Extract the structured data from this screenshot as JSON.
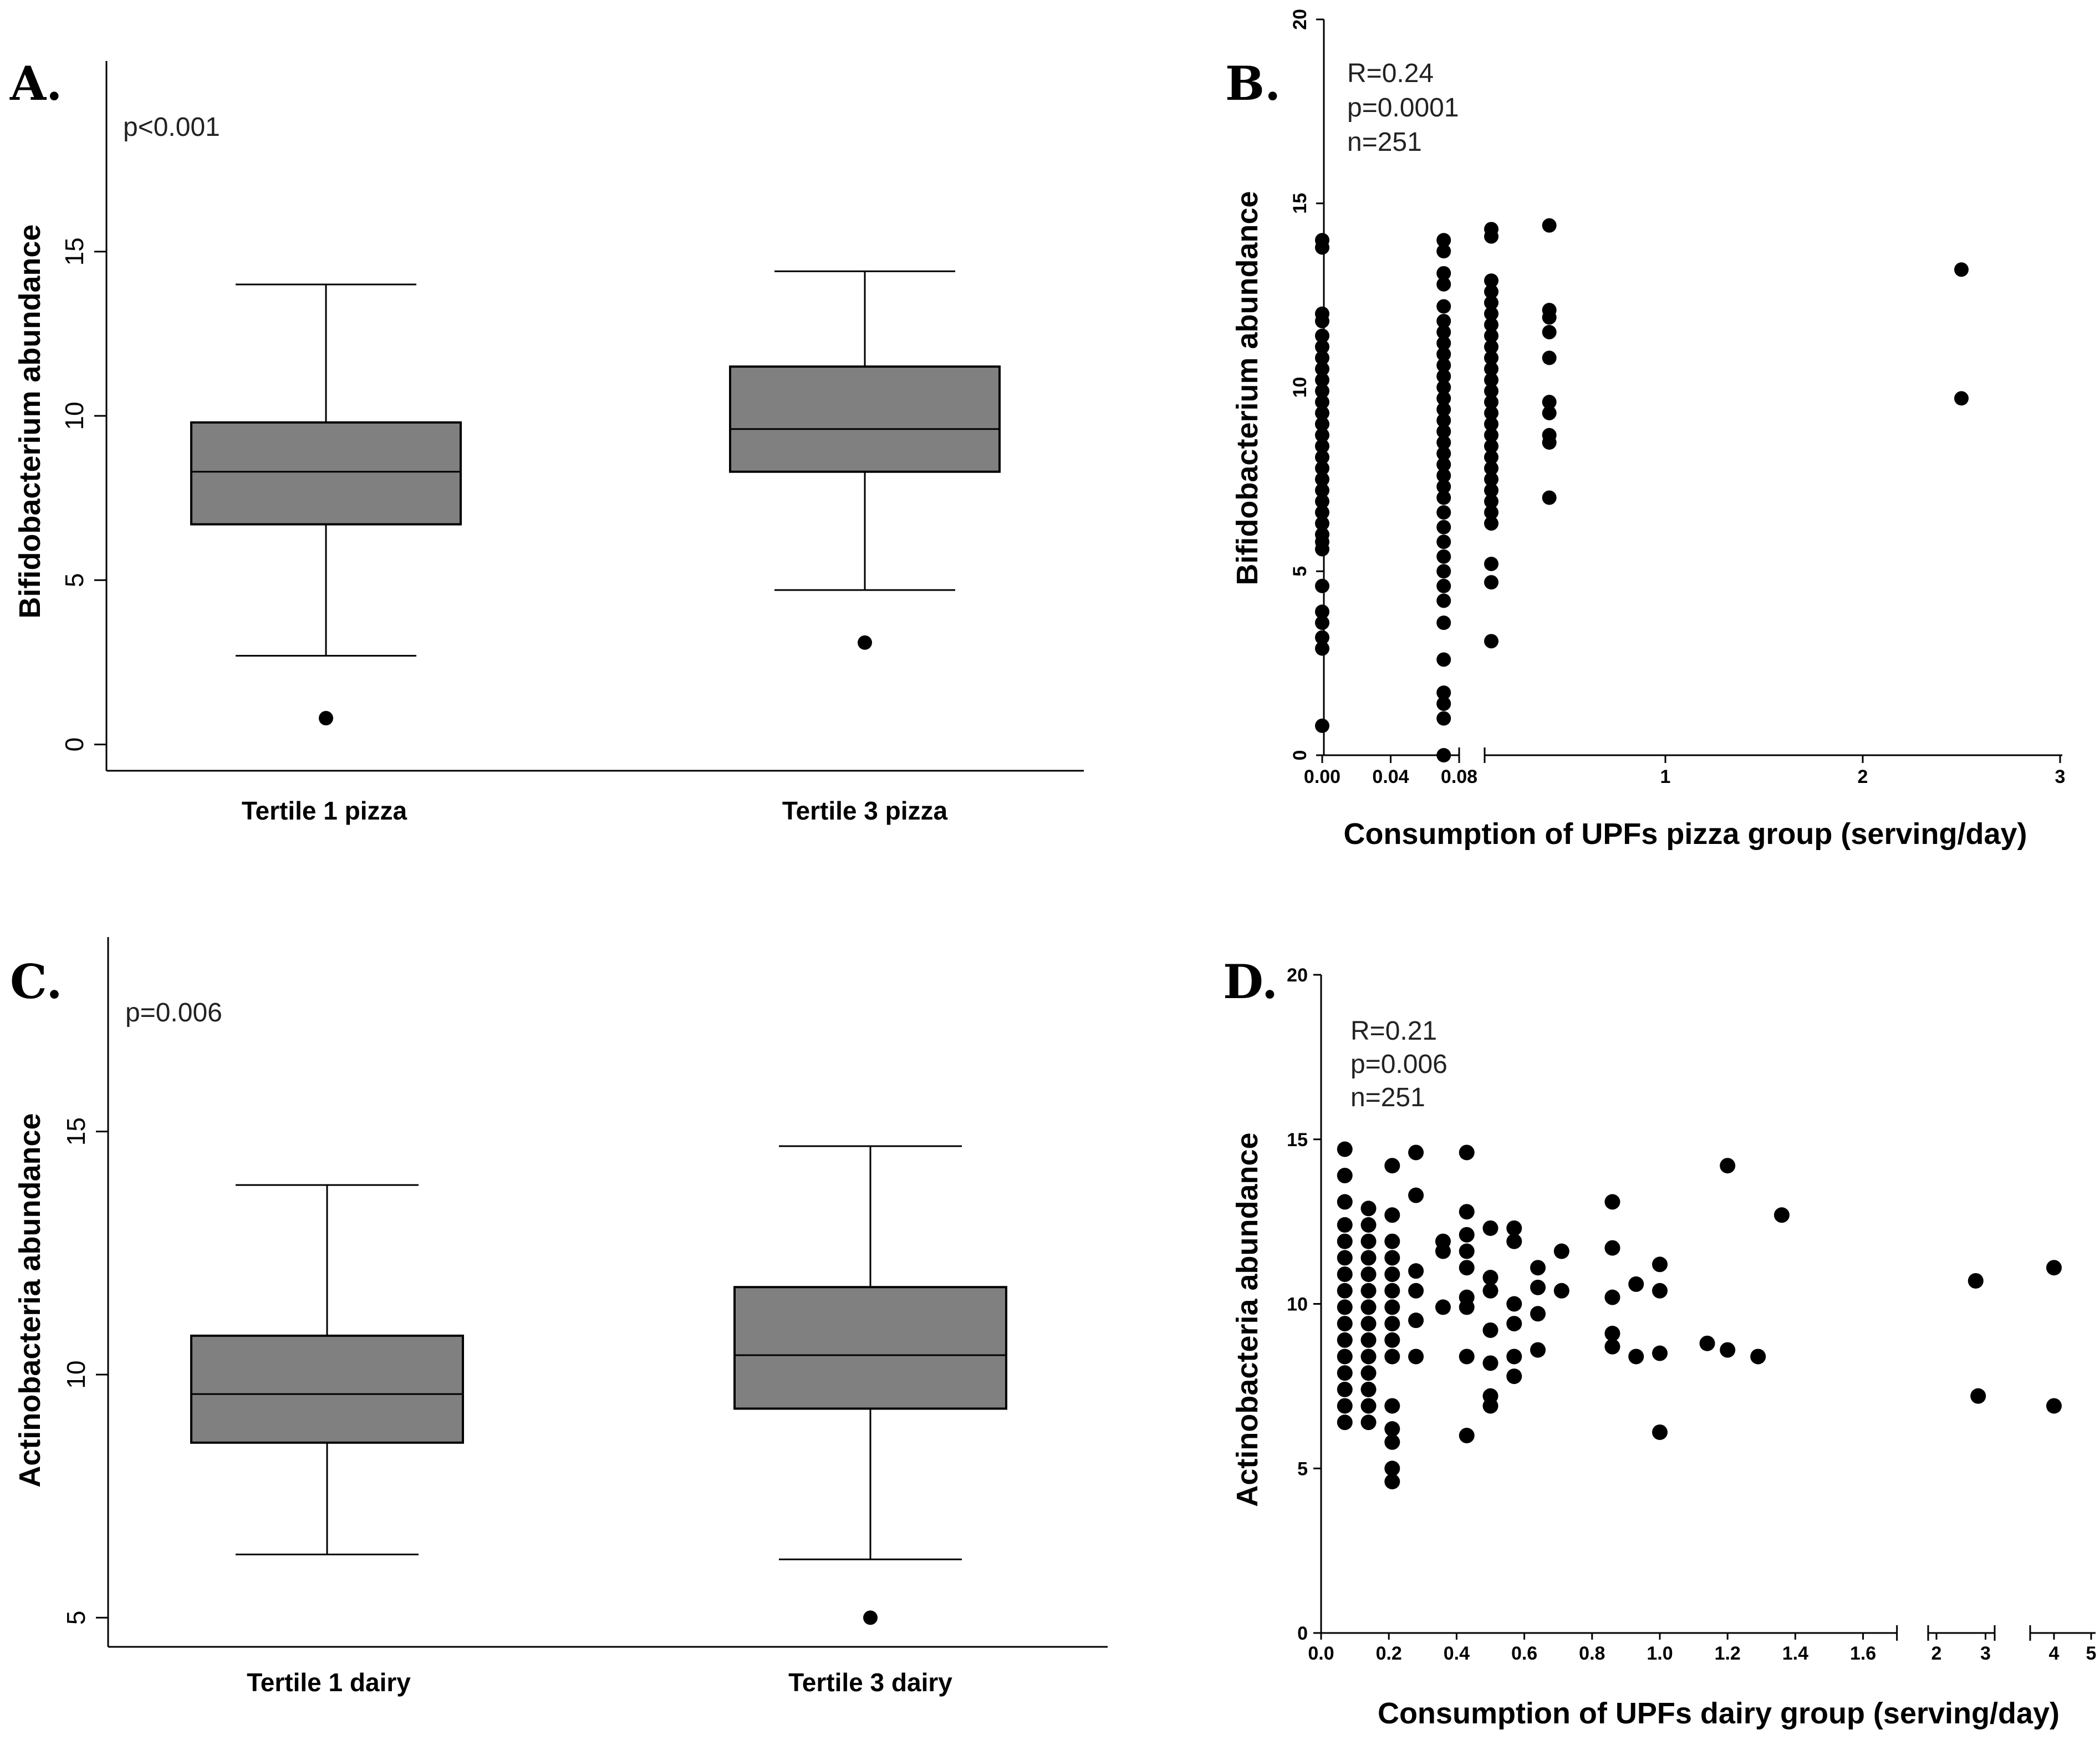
{
  "panels": {
    "A": {
      "letter": "A.",
      "annotation": "p<0.001"
    },
    "B": {
      "letter": "B.",
      "annotation": [
        "R=0.24",
        "p=0.0001",
        "n=251"
      ]
    },
    "C": {
      "letter": "C.",
      "annotation": "p=0.006"
    },
    "D": {
      "letter": "D.",
      "annotation": [
        "R=0.21",
        "p=0.006",
        "n=251"
      ]
    }
  },
  "chart_data": [
    {
      "panel": "A",
      "type": "box",
      "ylabel": "Bifidobacterium abundance",
      "yticks": [
        0,
        5,
        10,
        15
      ],
      "ylim": [
        -0.8,
        20.8
      ],
      "categories": [
        "Tertile 1 pizza",
        "Tertile 3 pizza"
      ],
      "boxes": [
        {
          "min": 2.7,
          "q1": 6.7,
          "median": 8.3,
          "q3": 9.8,
          "max": 14.0,
          "outliers": [
            0.8
          ]
        },
        {
          "min": 4.7,
          "q1": 8.3,
          "median": 9.6,
          "q3": 11.5,
          "max": 14.4,
          "outliers": [
            3.1
          ]
        }
      ]
    },
    {
      "panel": "B",
      "type": "scatter",
      "xlabel": "Consumption of UPFs pizza group (serving/day)",
      "ylabel": "Bifidobacterium abundance",
      "ylim": [
        0,
        20
      ],
      "yticks": [
        0,
        5,
        10,
        15,
        20
      ],
      "xticks": [
        "0.00",
        "0.04",
        "0.08",
        "1",
        "2",
        "3"
      ],
      "x_axis_broken": true,
      "clusters": [
        {
          "x": 0.0,
          "y": [
            0.8,
            2.9,
            3.2,
            3.6,
            3.9,
            4.6,
            5.6,
            5.8,
            6.0,
            6.3,
            6.6,
            6.9,
            7.2,
            7.5,
            7.8,
            8.1,
            8.4,
            8.7,
            9.0,
            9.3,
            9.6,
            9.9,
            10.2,
            10.5,
            10.8,
            11.1,
            11.4,
            11.8,
            12.0,
            13.8,
            14.0
          ]
        },
        {
          "x": 0.071,
          "y": [
            0.0,
            1.0,
            1.4,
            1.7,
            2.6,
            3.6,
            4.2,
            4.6,
            5.0,
            5.4,
            5.8,
            6.2,
            6.6,
            7.0,
            7.3,
            7.6,
            7.9,
            8.2,
            8.5,
            8.8,
            9.1,
            9.4,
            9.7,
            10.0,
            10.3,
            10.6,
            10.9,
            11.2,
            11.5,
            11.8,
            12.2,
            12.8,
            13.1,
            13.7,
            14.0
          ]
        },
        {
          "x": 0.1,
          "y": [
            3.1,
            4.7,
            5.2,
            6.3,
            6.6,
            6.9,
            7.2,
            7.5,
            7.8,
            8.1,
            8.4,
            8.7,
            9.0,
            9.3,
            9.6,
            9.9,
            10.2,
            10.5,
            10.8,
            11.1,
            11.4,
            11.7,
            12.0,
            12.3,
            12.6,
            12.9,
            14.1,
            14.3
          ]
        },
        {
          "x": 0.4,
          "y": [
            7.0,
            8.5,
            8.7,
            9.3,
            9.6,
            10.8,
            11.5,
            11.9,
            12.1,
            14.4
          ]
        },
        {
          "x": 2.5,
          "y": [
            9.7,
            13.2
          ]
        }
      ]
    },
    {
      "panel": "C",
      "type": "box",
      "ylabel": "Actinobacteria abundance",
      "yticks": [
        5,
        10,
        15
      ],
      "ylim": [
        4.4,
        19.0
      ],
      "categories": [
        "Tertile 1 dairy",
        "Tertile 3 dairy"
      ],
      "boxes": [
        {
          "min": 6.3,
          "q1": 8.6,
          "median": 9.6,
          "q3": 10.8,
          "max": 13.9,
          "outliers": []
        },
        {
          "min": 6.2,
          "q1": 9.3,
          "median": 10.4,
          "q3": 11.8,
          "max": 14.7,
          "outliers": [
            5.0
          ]
        }
      ]
    },
    {
      "panel": "D",
      "type": "scatter",
      "xlabel": "Consumption of UPFs dairy group (serving/day)",
      "ylabel": "Actinobacteria abundance",
      "ylim": [
        0,
        20
      ],
      "yticks": [
        0,
        5,
        10,
        15,
        20
      ],
      "xticks": [
        "0.0",
        "0.2",
        "0.4",
        "0.6",
        "0.8",
        "1.0",
        "1.2",
        "1.4",
        "1.6",
        "2",
        "3",
        "4",
        "5"
      ],
      "x_axis_broken": true,
      "points": [
        [
          0.07,
          14.7
        ],
        [
          0.07,
          13.9
        ],
        [
          0.07,
          13.1
        ],
        [
          0.07,
          12.4
        ],
        [
          0.07,
          11.9
        ],
        [
          0.07,
          11.4
        ],
        [
          0.07,
          10.9
        ],
        [
          0.07,
          10.4
        ],
        [
          0.07,
          9.9
        ],
        [
          0.07,
          9.4
        ],
        [
          0.07,
          8.9
        ],
        [
          0.07,
          8.4
        ],
        [
          0.07,
          7.9
        ],
        [
          0.07,
          7.4
        ],
        [
          0.07,
          6.9
        ],
        [
          0.07,
          6.4
        ],
        [
          0.14,
          12.9
        ],
        [
          0.14,
          12.4
        ],
        [
          0.14,
          11.9
        ],
        [
          0.14,
          11.4
        ],
        [
          0.14,
          10.9
        ],
        [
          0.14,
          10.4
        ],
        [
          0.14,
          9.9
        ],
        [
          0.14,
          9.4
        ],
        [
          0.14,
          8.9
        ],
        [
          0.14,
          8.4
        ],
        [
          0.14,
          7.9
        ],
        [
          0.14,
          7.4
        ],
        [
          0.14,
          6.9
        ],
        [
          0.14,
          6.4
        ],
        [
          0.21,
          14.2
        ],
        [
          0.21,
          12.7
        ],
        [
          0.21,
          11.9
        ],
        [
          0.21,
          11.4
        ],
        [
          0.21,
          10.9
        ],
        [
          0.21,
          10.4
        ],
        [
          0.21,
          9.9
        ],
        [
          0.21,
          9.4
        ],
        [
          0.21,
          8.9
        ],
        [
          0.21,
          8.4
        ],
        [
          0.21,
          6.9
        ],
        [
          0.21,
          6.2
        ],
        [
          0.21,
          5.8
        ],
        [
          0.21,
          5.0
        ],
        [
          0.21,
          4.6
        ],
        [
          0.28,
          14.6
        ],
        [
          0.28,
          13.3
        ],
        [
          0.28,
          11.0
        ],
        [
          0.28,
          10.4
        ],
        [
          0.28,
          9.5
        ],
        [
          0.28,
          8.4
        ],
        [
          0.36,
          11.9
        ],
        [
          0.36,
          11.6
        ],
        [
          0.36,
          9.9
        ],
        [
          0.43,
          14.6
        ],
        [
          0.43,
          12.8
        ],
        [
          0.43,
          12.1
        ],
        [
          0.43,
          11.6
        ],
        [
          0.43,
          11.1
        ],
        [
          0.43,
          10.2
        ],
        [
          0.43,
          9.9
        ],
        [
          0.43,
          8.4
        ],
        [
          0.43,
          6.0
        ],
        [
          0.5,
          12.3
        ],
        [
          0.5,
          10.8
        ],
        [
          0.5,
          10.4
        ],
        [
          0.5,
          9.2
        ],
        [
          0.5,
          8.2
        ],
        [
          0.5,
          7.2
        ],
        [
          0.5,
          6.9
        ],
        [
          0.57,
          12.3
        ],
        [
          0.57,
          11.9
        ],
        [
          0.57,
          10.0
        ],
        [
          0.57,
          9.4
        ],
        [
          0.57,
          8.4
        ],
        [
          0.57,
          7.8
        ],
        [
          0.64,
          11.1
        ],
        [
          0.64,
          10.5
        ],
        [
          0.64,
          9.7
        ],
        [
          0.64,
          8.6
        ],
        [
          0.71,
          11.6
        ],
        [
          0.71,
          10.4
        ],
        [
          0.86,
          13.1
        ],
        [
          0.86,
          11.7
        ],
        [
          0.86,
          10.2
        ],
        [
          0.86,
          9.1
        ],
        [
          0.86,
          8.7
        ],
        [
          0.93,
          10.6
        ],
        [
          0.93,
          8.4
        ],
        [
          1.0,
          11.2
        ],
        [
          1.0,
          10.4
        ],
        [
          1.0,
          8.5
        ],
        [
          1.0,
          6.1
        ],
        [
          1.14,
          8.8
        ],
        [
          1.2,
          14.2
        ],
        [
          1.2,
          8.6
        ],
        [
          1.29,
          8.4
        ],
        [
          1.36,
          12.7
        ],
        [
          2.8,
          10.7
        ],
        [
          2.85,
          7.2
        ],
        [
          4.0,
          11.1
        ],
        [
          4.0,
          6.9
        ]
      ]
    }
  ]
}
